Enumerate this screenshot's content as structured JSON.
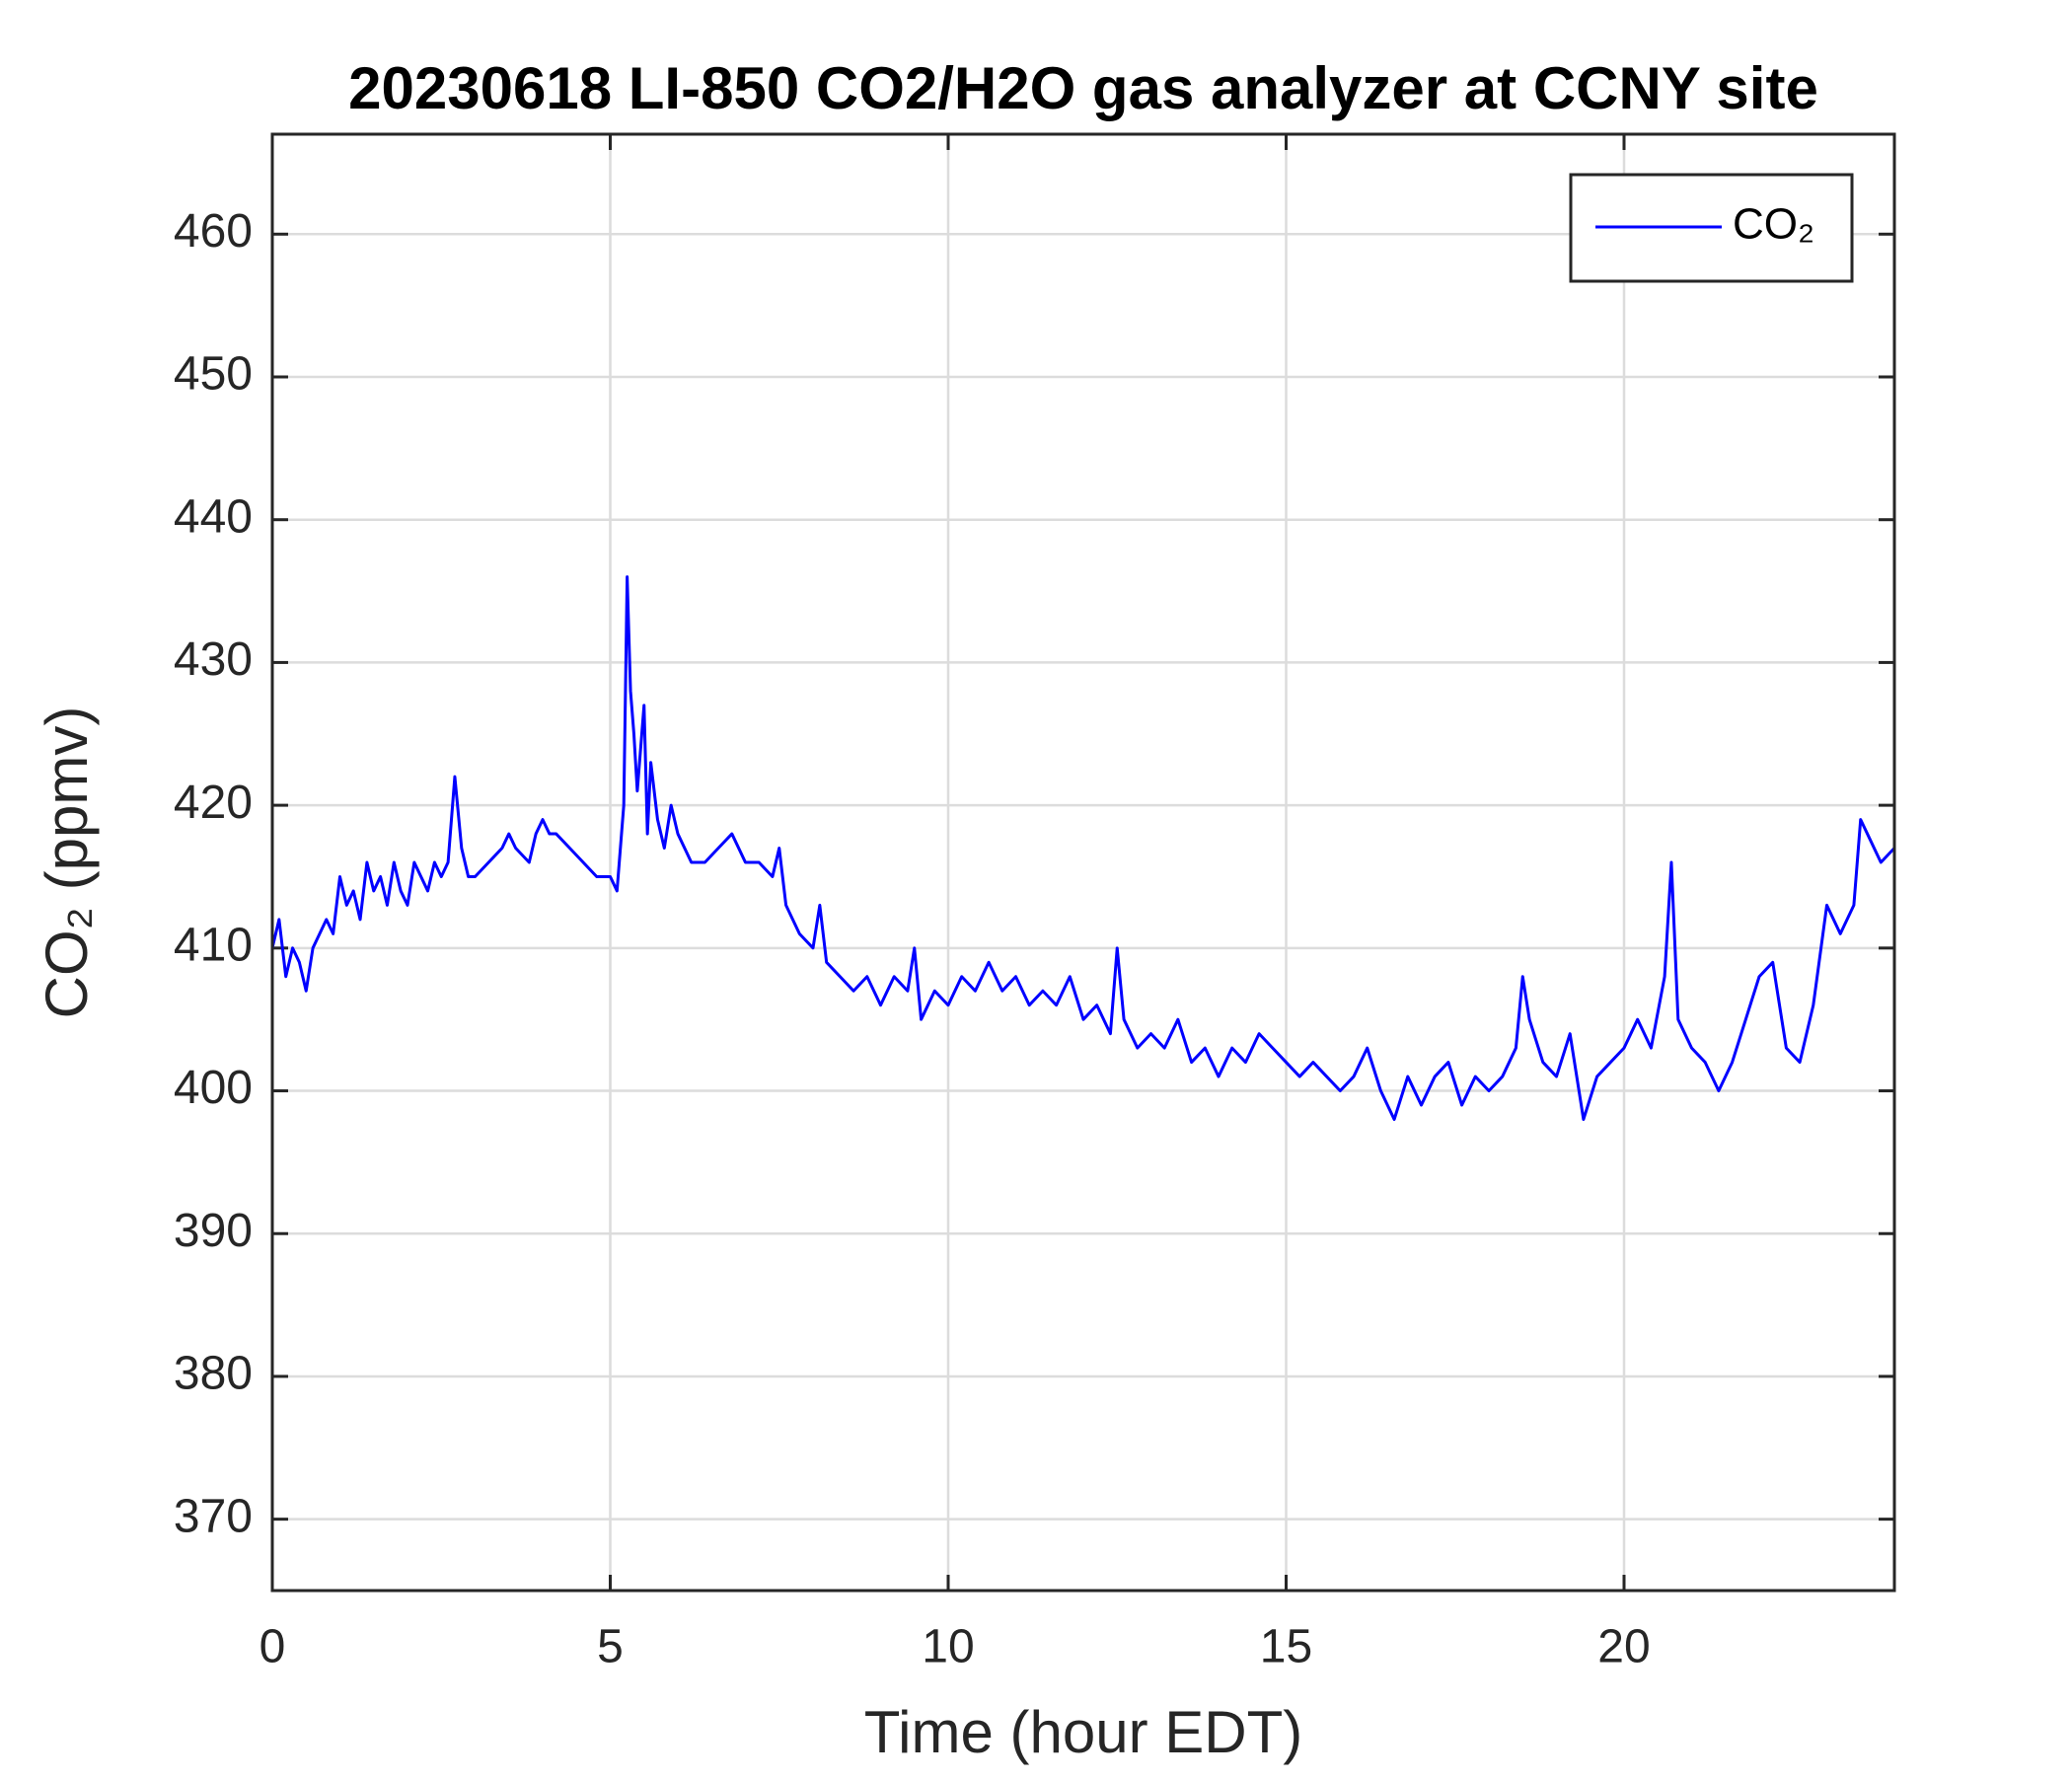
{
  "chart_data": {
    "type": "line",
    "title": "20230618 LI-850 CO2/H2O gas analyzer at CCNY site",
    "x_label": "Time (hour EDT)",
    "y_label": "CO₂ (ppmv)",
    "xlim": [
      0,
      24
    ],
    "xticks": [
      0,
      5,
      10,
      15,
      20
    ],
    "ylim": [
      365,
      467
    ],
    "yticks": [
      370,
      380,
      390,
      400,
      410,
      420,
      430,
      440,
      450,
      460
    ],
    "grid": true,
    "legend": "upper right",
    "x": [
      0,
      0.1,
      0.2,
      0.3,
      0.4,
      0.5,
      0.6,
      0.7,
      0.8,
      0.9,
      1.0,
      1.1,
      1.2,
      1.3,
      1.4,
      1.5,
      1.6,
      1.7,
      1.8,
      1.9,
      2.0,
      2.1,
      2.2,
      2.3,
      2.4,
      2.5,
      2.6,
      2.7,
      2.8,
      2.9,
      3.0,
      3.2,
      3.4,
      3.5,
      3.6,
      3.8,
      3.9,
      4.0,
      4.1,
      4.2,
      4.4,
      4.6,
      4.8,
      5.0,
      5.1,
      5.2,
      5.25,
      5.3,
      5.35,
      5.4,
      5.5,
      5.55,
      5.6,
      5.7,
      5.8,
      5.9,
      6.0,
      6.2,
      6.4,
      6.6,
      6.8,
      7.0,
      7.2,
      7.4,
      7.5,
      7.6,
      7.8,
      8.0,
      8.1,
      8.2,
      8.4,
      8.6,
      8.8,
      9.0,
      9.2,
      9.4,
      9.5,
      9.6,
      9.8,
      10.0,
      10.2,
      10.4,
      10.6,
      10.8,
      11.0,
      11.2,
      11.4,
      11.6,
      11.8,
      12.0,
      12.2,
      12.4,
      12.5,
      12.6,
      12.8,
      13.0,
      13.2,
      13.4,
      13.6,
      13.8,
      14.0,
      14.2,
      14.4,
      14.6,
      14.8,
      15.0,
      15.2,
      15.4,
      15.6,
      15.8,
      16.0,
      16.2,
      16.4,
      16.6,
      16.8,
      17.0,
      17.2,
      17.4,
      17.6,
      17.8,
      18.0,
      18.2,
      18.4,
      18.5,
      18.6,
      18.8,
      19.0,
      19.2,
      19.4,
      19.6,
      19.8,
      20.0,
      20.2,
      20.4,
      20.6,
      20.7,
      20.8,
      21.0,
      21.2,
      21.4,
      21.6,
      21.8,
      22.0,
      22.2,
      22.4,
      22.6,
      22.8,
      23.0,
      23.2,
      23.4,
      23.5,
      23.6,
      23.8,
      24.0
    ],
    "series": [
      {
        "name": "CO₂",
        "color": "#0000ff",
        "values": [
          410,
          412,
          408,
          410,
          409,
          407,
          410,
          411,
          412,
          411,
          415,
          413,
          414,
          412,
          416,
          414,
          415,
          413,
          416,
          414,
          413,
          416,
          415,
          414,
          416,
          415,
          416,
          422,
          417,
          415,
          415,
          416,
          417,
          418,
          417,
          416,
          418,
          419,
          418,
          418,
          417,
          416,
          415,
          415,
          414,
          420,
          436,
          428,
          425,
          421,
          427,
          418,
          423,
          419,
          417,
          420,
          418,
          416,
          416,
          417,
          418,
          416,
          416,
          415,
          417,
          413,
          411,
          410,
          413,
          409,
          408,
          407,
          408,
          406,
          408,
          407,
          410,
          405,
          407,
          406,
          408,
          407,
          409,
          407,
          408,
          406,
          407,
          406,
          408,
          405,
          406,
          404,
          410,
          405,
          403,
          404,
          403,
          405,
          402,
          403,
          401,
          403,
          402,
          404,
          403,
          402,
          401,
          402,
          401,
          400,
          401,
          403,
          400,
          398,
          401,
          399,
          401,
          402,
          399,
          401,
          400,
          401,
          403,
          408,
          405,
          402,
          401,
          404,
          398,
          401,
          402,
          403,
          405,
          403,
          408,
          416,
          405,
          403,
          402,
          400,
          402,
          405,
          408,
          409,
          403,
          402,
          406,
          413,
          411,
          413,
          419,
          418,
          416,
          417
        ]
      }
    ]
  }
}
